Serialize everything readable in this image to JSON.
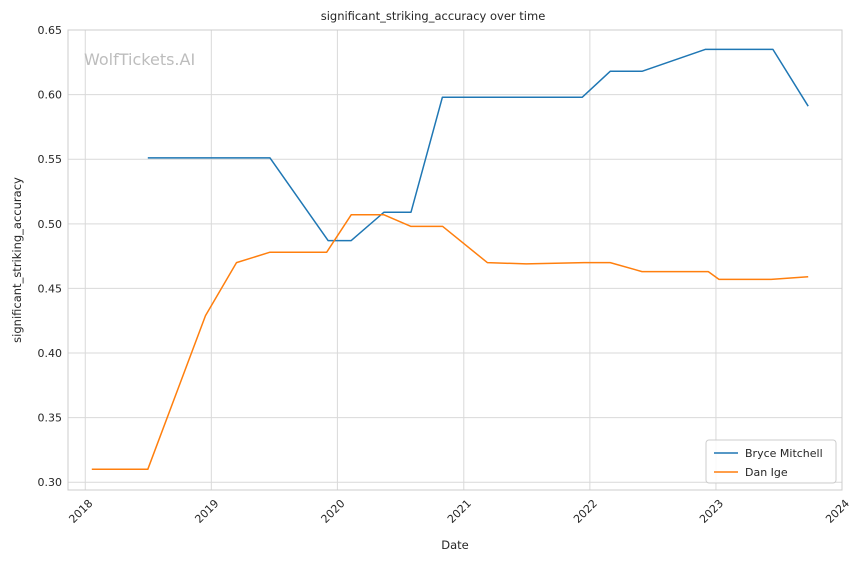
{
  "chart_data": {
    "type": "line",
    "title": "significant_striking_accuracy over time",
    "xlabel": "Date",
    "ylabel": "significant_striking_accuracy",
    "watermark": "WolfTickets.AI",
    "xlim": [
      "2017-11-12",
      "2024-01-01"
    ],
    "ylim": [
      0.294,
      0.65
    ],
    "x_ticks": [
      "2018",
      "2019",
      "2020",
      "2021",
      "2022",
      "2023",
      "2024"
    ],
    "y_ticks": [
      "0.30",
      "0.35",
      "0.40",
      "0.45",
      "0.50",
      "0.55",
      "0.60",
      "0.65"
    ],
    "grid": true,
    "legend_position": "bottom-right",
    "series": [
      {
        "name": "Bryce Mitchell",
        "color": "#1f77b4",
        "points": [
          [
            "2018-07-01",
            0.551
          ],
          [
            "2019-06-20",
            0.551
          ],
          [
            "2019-12-05",
            0.487
          ],
          [
            "2020-02-10",
            0.487
          ],
          [
            "2020-05-15",
            0.509
          ],
          [
            "2020-08-01",
            0.509
          ],
          [
            "2020-10-31",
            0.598
          ],
          [
            "2021-12-10",
            0.598
          ],
          [
            "2022-03-01",
            0.618
          ],
          [
            "2022-06-01",
            0.618
          ],
          [
            "2022-12-01",
            0.635
          ],
          [
            "2023-06-15",
            0.635
          ],
          [
            "2023-09-25",
            0.591
          ]
        ]
      },
      {
        "name": "Dan Ige",
        "color": "#ff7f0e",
        "points": [
          [
            "2018-01-20",
            0.31
          ],
          [
            "2018-07-01",
            0.31
          ],
          [
            "2018-12-15",
            0.429
          ],
          [
            "2019-03-15",
            0.47
          ],
          [
            "2019-06-20",
            0.478
          ],
          [
            "2019-12-01",
            0.478
          ],
          [
            "2020-02-10",
            0.507
          ],
          [
            "2020-05-15",
            0.507
          ],
          [
            "2020-08-01",
            0.498
          ],
          [
            "2020-11-01",
            0.498
          ],
          [
            "2021-03-10",
            0.47
          ],
          [
            "2021-07-01",
            0.469
          ],
          [
            "2021-12-15",
            0.47
          ],
          [
            "2022-03-01",
            0.47
          ],
          [
            "2022-06-01",
            0.463
          ],
          [
            "2022-12-10",
            0.463
          ],
          [
            "2023-01-10",
            0.457
          ],
          [
            "2023-06-10",
            0.457
          ],
          [
            "2023-09-25",
            0.459
          ]
        ]
      }
    ]
  }
}
